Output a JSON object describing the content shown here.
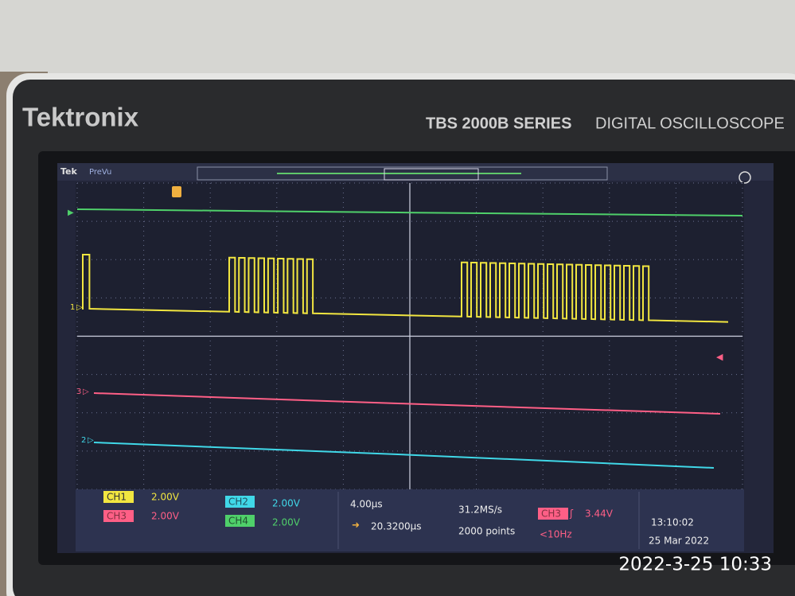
{
  "header": {
    "brand": "Tektronix",
    "series": "TBS 2000B SERIES",
    "product": "DIGITAL OSCILLOSCOPE"
  },
  "screen": {
    "brand_tag": "Tek",
    "mode": "PreVu",
    "channel_markers": [
      "1",
      "3",
      "2"
    ]
  },
  "status": {
    "channels": [
      {
        "label": "CH1",
        "scale": "2.00V"
      },
      {
        "label": "CH3",
        "scale": "2.00V"
      },
      {
        "label": "CH2",
        "scale": "2.00V"
      },
      {
        "label": "CH4",
        "scale": "2.00V"
      }
    ],
    "timebase": "4.00µs",
    "position": "20.3200µs",
    "sample_rate": "31.2MS/s",
    "record_length": "2000 points",
    "trigger": {
      "source": "CH3",
      "level": "3.44V",
      "frequency": "<10Hz"
    },
    "time": "13:10:02",
    "date": "25 Mar 2022"
  },
  "photo_timestamp": "2022-3-25 10:33"
}
